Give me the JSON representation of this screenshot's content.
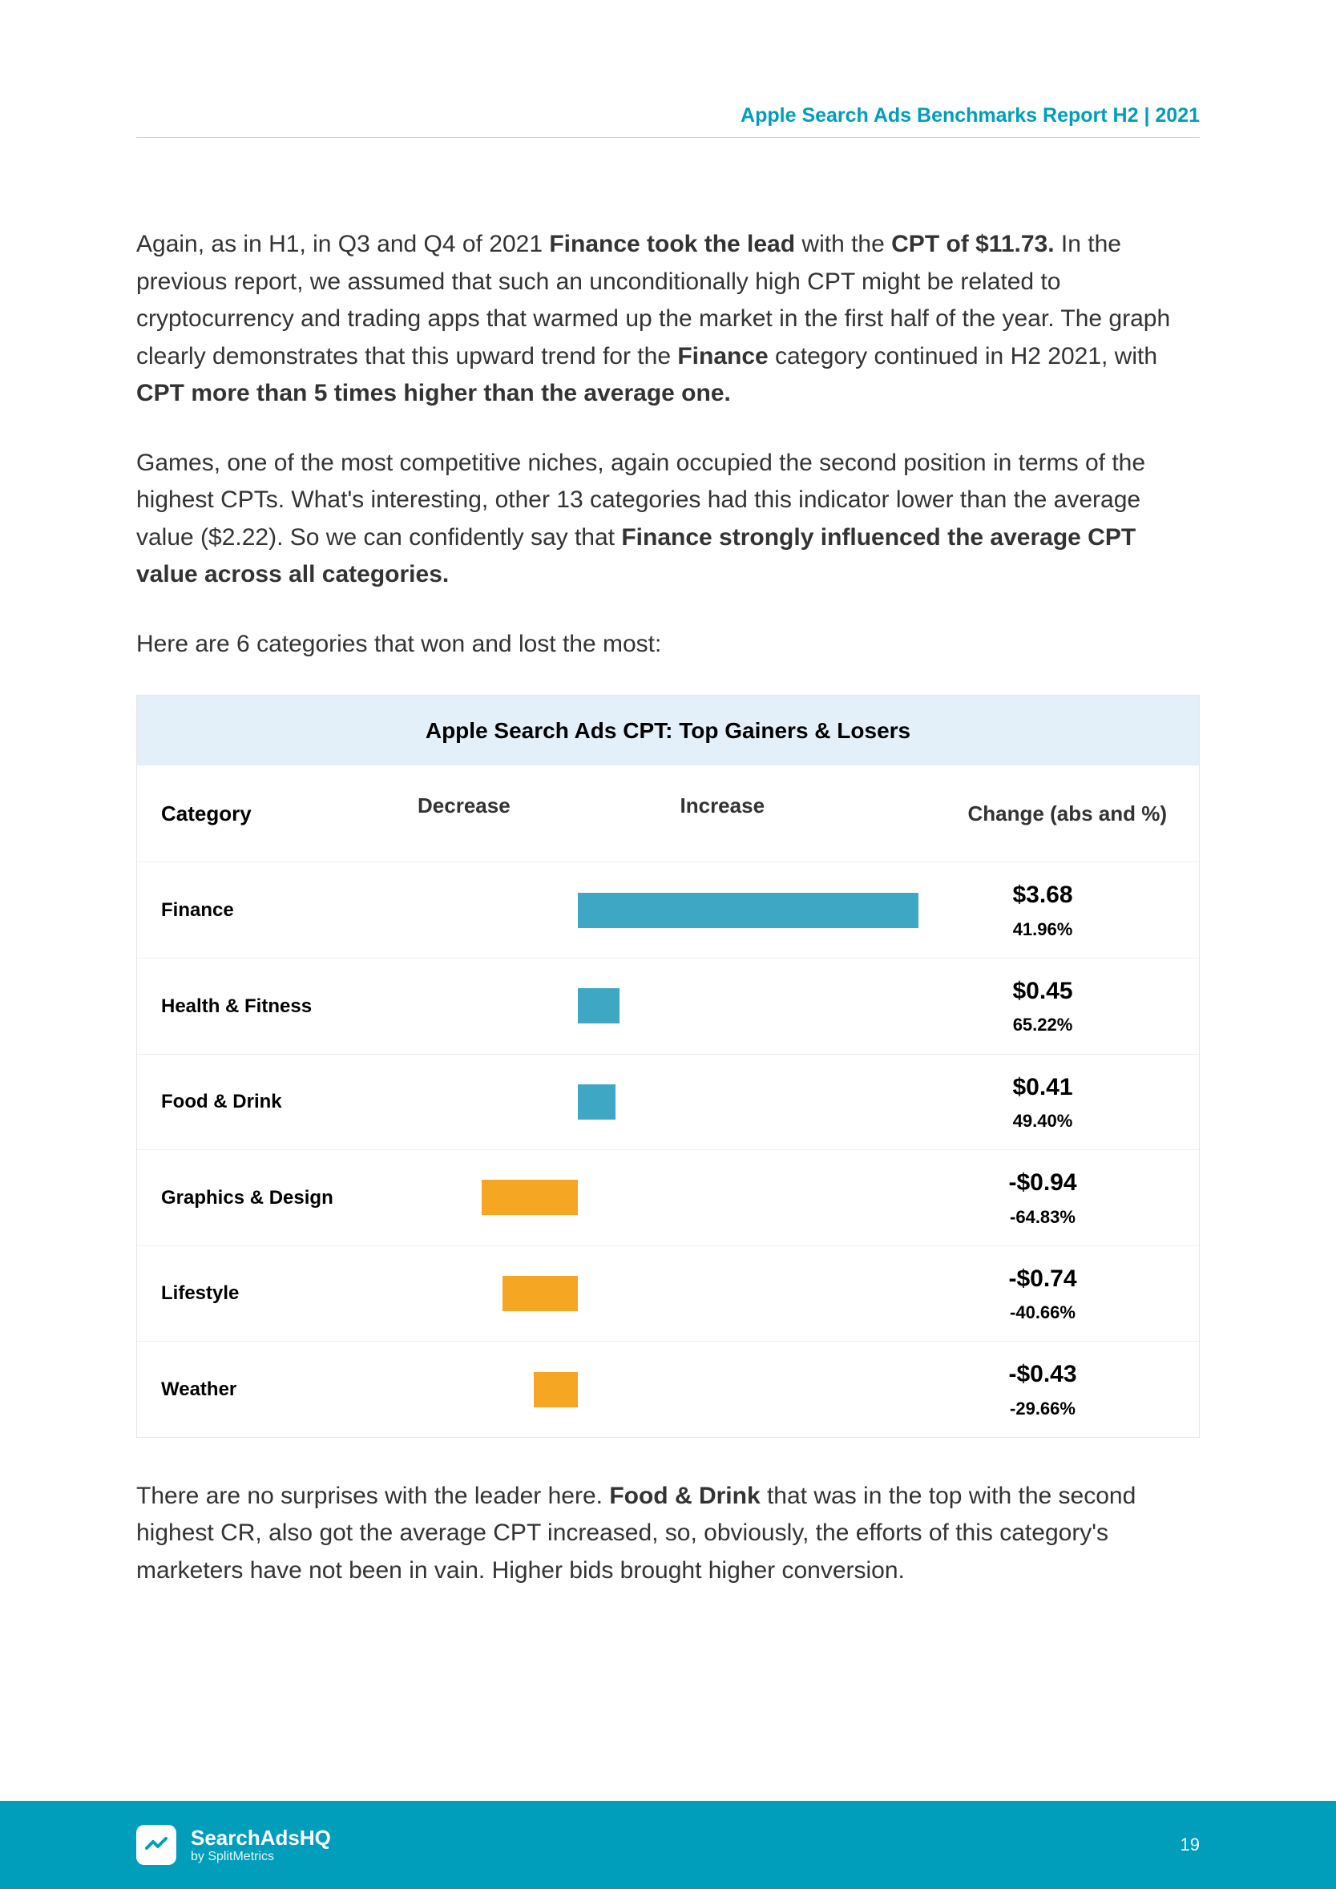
{
  "header": {
    "title": "Apple Search Ads Benchmarks Report H2 | 2021"
  },
  "body": {
    "p1_pre": "Again, as in H1, in Q3 and Q4 of 2021 ",
    "p1_b1": "Finance took the lead",
    "p1_mid1": " with the ",
    "p1_b2": "CPT of $11.73.",
    "p1_mid2": " In the previous report, we assumed that such an unconditionally high CPT might be related to cryptocurrency and trading apps that warmed up the market in the first half of the year. The graph clearly demonstrates that this upward trend for the ",
    "p1_b3": "Finance",
    "p1_mid3": " category continued in H2 2021, with ",
    "p1_b4": "CPT more than 5 times higher than the average one.",
    "p2_pre": "Games, one of the most competitive niches, again occupied the second position in terms of the highest CPTs. What's interesting, other 13 categories had this indicator lower than the average value ($2.22). So we can confidently say that ",
    "p2_b1": "Finance strongly influenced the average CPT value across all categories.",
    "p3": "Here are 6 categories that won and lost the most:",
    "p4_pre": "There are no surprises with the leader here. ",
    "p4_b1": "Food & Drink",
    "p4_post": " that was in the top with the second highest CR, also got the average CPT increased, so, obviously, the efforts of this category's marketers have not been in vain. Higher bids brought higher conversion."
  },
  "chart": {
    "title": "Apple Search Ads CPT: Top Gainers & Losers",
    "headers": {
      "category": "Category",
      "decrease": "Decrease",
      "increase": "Increase",
      "change": "Change (abs and %)"
    },
    "colors": {
      "increase": "#3ea8c4",
      "decrease": "#f5a623",
      "title_bg": "#e3f0f9",
      "border": "#eeeeee"
    },
    "bar_scale_max": 3.68,
    "bar_scale_neg_max": 1.0,
    "rows": [
      {
        "category": "Finance",
        "value": 3.68,
        "abs": "$3.68",
        "pct": "41.96%"
      },
      {
        "category": "Health & Fitness",
        "value": 0.45,
        "abs": "$0.45",
        "pct": "65.22%"
      },
      {
        "category": "Food & Drink",
        "value": 0.41,
        "abs": "$0.41",
        "pct": "49.40%"
      },
      {
        "category": "Graphics & Design",
        "value": -0.94,
        "abs": "-$0.94",
        "pct": "-64.83%"
      },
      {
        "category": "Lifestyle",
        "value": -0.74,
        "abs": "-$0.74",
        "pct": "-40.66%"
      },
      {
        "category": "Weather",
        "value": -0.43,
        "abs": "-$0.43",
        "pct": "-29.66%"
      }
    ]
  },
  "footer": {
    "brand_main": "SearchAdsHQ",
    "brand_sub": "by SplitMetrics",
    "page_number": "19"
  }
}
